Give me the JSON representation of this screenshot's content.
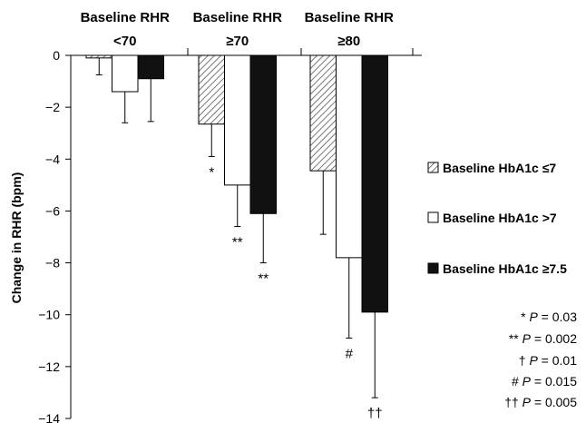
{
  "chart_data": {
    "type": "bar",
    "ylabel": "Change in RHR (bpm)",
    "xlabel": "",
    "ylim": [
      -14,
      0
    ],
    "yticks": [
      0,
      -2,
      -4,
      -6,
      -8,
      -10,
      -12,
      -14
    ],
    "groups": [
      {
        "title_line1": "Baseline RHR",
        "title_line2": "<70"
      },
      {
        "title_line1": "Baseline RHR",
        "title_line2": "≥70"
      },
      {
        "title_line1": "Baseline RHR",
        "title_line2": "≥80"
      }
    ],
    "series": [
      {
        "name": "Baseline HbA1c ≤7",
        "style": "hatched",
        "values": [
          -0.1,
          -2.65,
          -4.45
        ],
        "error_low": [
          -0.75,
          -3.9,
          -6.9
        ]
      },
      {
        "name": "Baseline HbA1c >7",
        "style": "open",
        "values": [
          -1.4,
          -5.0,
          -7.8
        ],
        "error_low": [
          -2.6,
          -6.6,
          -10.9
        ]
      },
      {
        "name": "Baseline HbA1c ≥7.5",
        "style": "solid",
        "values": [
          -0.9,
          -6.1,
          -9.9
        ],
        "error_low": [
          -2.55,
          -8.0,
          -13.2
        ]
      }
    ],
    "significance_marks": [
      {
        "group": 1,
        "series": 0,
        "label": "*"
      },
      {
        "group": 1,
        "series": 1,
        "label": "**"
      },
      {
        "group": 1,
        "series": 2,
        "label": "**"
      },
      {
        "group": 2,
        "series": 1,
        "label": "#"
      },
      {
        "group": 2,
        "series": 2,
        "label": "††"
      }
    ],
    "p_value_notes": [
      {
        "sym": "* ",
        "p": "P",
        "rest": " = 0.03"
      },
      {
        "sym": "** ",
        "p": "P",
        "rest": " = 0.002"
      },
      {
        "sym": "† ",
        "p": "P",
        "rest": " = 0.01"
      },
      {
        "sym": "# ",
        "p": "P",
        "rest": " = 0.015"
      },
      {
        "sym": "†† ",
        "p": "P",
        "rest": " = 0.005"
      }
    ],
    "legend_placement": "right",
    "grid": false
  }
}
